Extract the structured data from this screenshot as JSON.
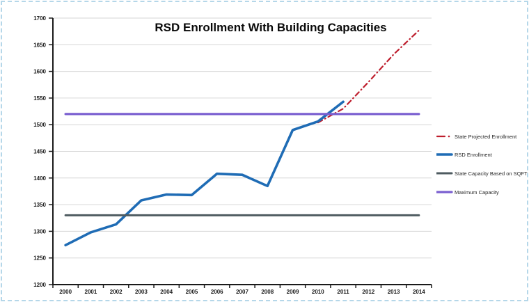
{
  "frame": {
    "border_color": "#b5d7e9",
    "background": "#ffffff"
  },
  "chart_data": {
    "type": "line",
    "title": "RSD Enrollment With Building Capacities",
    "x_categories": [
      "2000",
      "2001",
      "2002",
      "2003",
      "2004",
      "2005",
      "2006",
      "2007",
      "2008",
      "2009",
      "2010",
      "2011",
      "2012",
      "2013",
      "2014"
    ],
    "y_axis": {
      "min": 1200,
      "max": 1700,
      "step": 50,
      "tick_labels": [
        "1200",
        "1250",
        "1300",
        "1350",
        "1400",
        "1450",
        "1500",
        "1550",
        "1600",
        "1650",
        "1700"
      ]
    },
    "grid": true,
    "grid_color": "#d6d6d6",
    "axis_color": "#1a1a1a",
    "legend_position": "right",
    "series": [
      {
        "name": "State Projected Enrollment",
        "color": "#be1e2d",
        "style": "dash-dot",
        "width": 2.2,
        "x": [
          2010,
          2011,
          2012,
          2013,
          2014
        ],
        "values": [
          1504,
          1530,
          1580,
          1632,
          1677
        ]
      },
      {
        "name": "RSD Enrollment",
        "color": "#1f6cb5",
        "style": "solid",
        "width": 3.6,
        "x": [
          2000,
          2001,
          2002,
          2003,
          2004,
          2005,
          2006,
          2007,
          2008,
          2009,
          2010,
          2011
        ],
        "values": [
          1274,
          1298,
          1313,
          1358,
          1369,
          1368,
          1408,
          1406,
          1385,
          1490,
          1506,
          1543
        ]
      },
      {
        "name": "State Capacity Based on SQFT",
        "color": "#4e5b60",
        "style": "solid",
        "width": 3,
        "x": [
          2000,
          2014
        ],
        "values": [
          1330,
          1330
        ]
      },
      {
        "name": "Maximum Capacity",
        "color": "#7a5fd0",
        "style": "solid",
        "width": 3.2,
        "x": [
          2000,
          2014
        ],
        "values": [
          1520,
          1520
        ]
      }
    ]
  }
}
